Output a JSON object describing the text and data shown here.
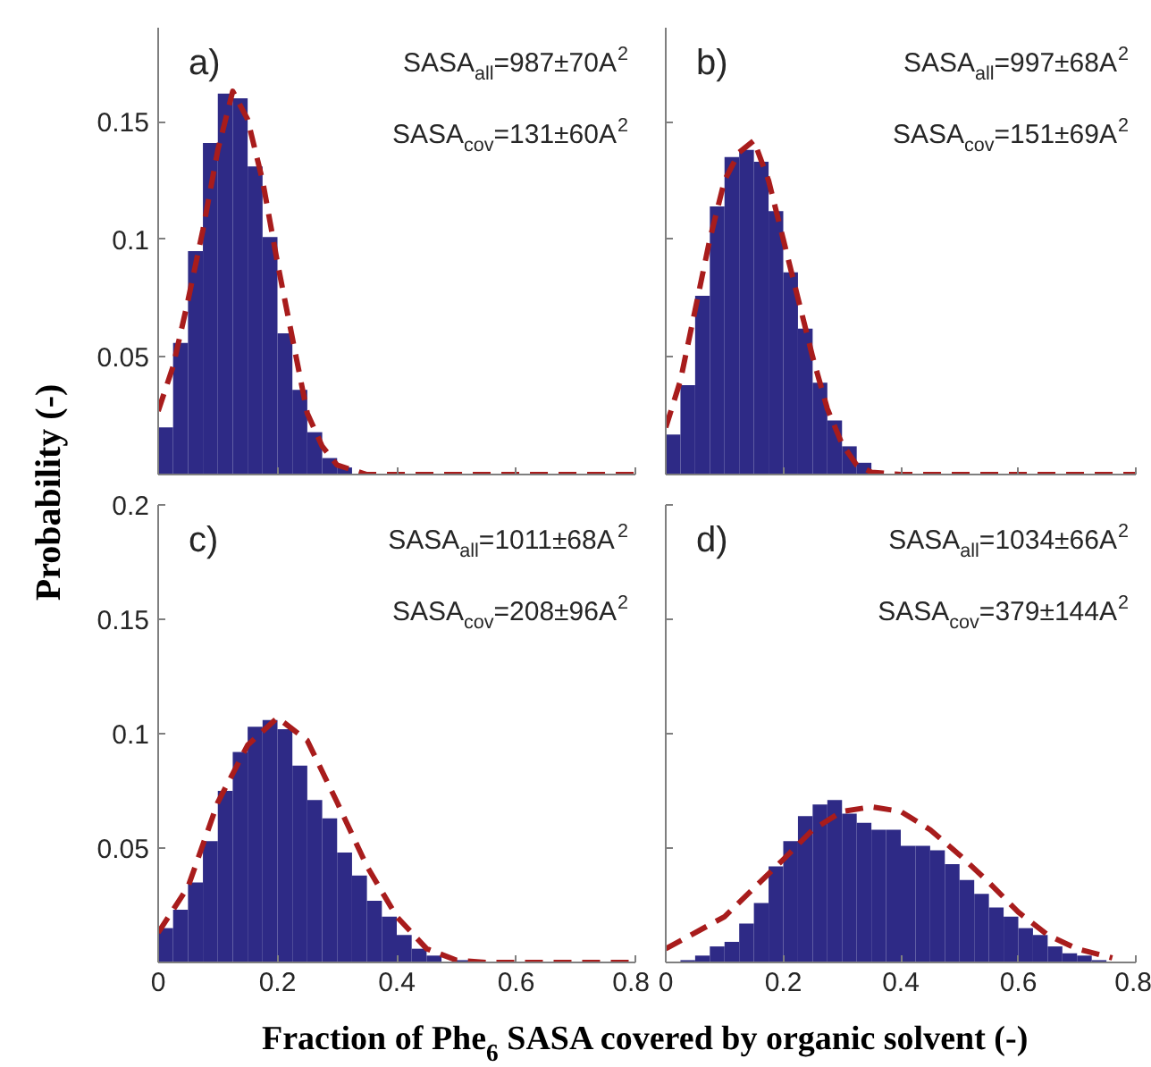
{
  "chart_data": [
    {
      "type": "histogram",
      "ylabel": "Probability (-)",
      "annotations": [
        "a)",
        "SASA$_{all}$=987±70A$^{2}$",
        "SASA$_{cov}$=131±60A$^{2}$"
      ],
      "bins": [
        0,
        0.025,
        0.05,
        0.075,
        0.1,
        0.125,
        0.15,
        0.175,
        0.2,
        0.225,
        0.25,
        0.275,
        0.3,
        0.325,
        0.35,
        0.375,
        0.4,
        0.425,
        0.45,
        0.475,
        0.5,
        0.525,
        0.55,
        0.575,
        0.6,
        0.625,
        0.65,
        0.675,
        0.7,
        0.725,
        0.75,
        0.775,
        0.8
      ],
      "values": [
        0.02,
        0.056,
        0.095,
        0.141,
        0.162,
        0.16,
        0.131,
        0.101,
        0.06,
        0.036,
        0.018,
        0.007,
        0.003,
        0,
        0,
        0,
        0,
        0,
        0,
        0,
        0,
        0,
        0,
        0,
        0,
        0,
        0,
        0,
        0,
        0,
        0,
        0
      ],
      "color": "#2e2a86",
      "xlim": [
        0,
        0.8
      ],
      "ylim": [
        0,
        0.19
      ],
      "xticks": [
        0,
        0.2,
        0.4,
        0.6,
        0.8
      ],
      "yticks": [
        0.05,
        0.1,
        0.15
      ],
      "tick_labels": "y",
      "series": [
        {
          "type": "line",
          "color": "#a81c1c",
          "line_style": "dashed",
          "x": [
            0,
            0.025,
            0.05,
            0.075,
            0.1,
            0.125,
            0.15,
            0.175,
            0.2,
            0.225,
            0.25,
            0.275,
            0.3,
            0.35,
            0.8
          ],
          "values": [
            0.027,
            0.046,
            0.074,
            0.104,
            0.138,
            0.163,
            0.151,
            0.125,
            0.09,
            0.058,
            0.026,
            0.012,
            0.004,
            0,
            0
          ]
        }
      ]
    },
    {
      "type": "histogram",
      "annotations": [
        "b)",
        "SASA$_{all}$=997±68A$^{2}$",
        "SASA$_{cov}$=151±69A$^{2}$"
      ],
      "bins": [
        0,
        0.025,
        0.05,
        0.075,
        0.1,
        0.125,
        0.15,
        0.175,
        0.2,
        0.225,
        0.25,
        0.275,
        0.3,
        0.325,
        0.35,
        0.375,
        0.4,
        0.425,
        0.45,
        0.475,
        0.5,
        0.525,
        0.55,
        0.575,
        0.6,
        0.625,
        0.65,
        0.675,
        0.7,
        0.725,
        0.75,
        0.775,
        0.8
      ],
      "values": [
        0.017,
        0.038,
        0.076,
        0.114,
        0.135,
        0.138,
        0.133,
        0.112,
        0.086,
        0.062,
        0.039,
        0.023,
        0.012,
        0.005,
        null,
        0,
        0,
        0,
        0,
        0,
        0,
        0,
        0,
        0,
        0,
        0,
        0,
        0,
        0,
        0,
        0,
        0
      ],
      "color": "#2e2a86",
      "xlim": [
        0,
        0.8
      ],
      "ylim": [
        0,
        0.19
      ],
      "xticks": [
        0,
        0.2,
        0.4,
        0.6,
        0.8
      ],
      "yticks": [
        0.05,
        0.1,
        0.15
      ],
      "tick_labels": false,
      "series": [
        {
          "type": "line",
          "color": "#a81c1c",
          "line_style": "dashed",
          "x": [
            0,
            0.025,
            0.05,
            0.075,
            0.1,
            0.125,
            0.15,
            0.175,
            0.2,
            0.225,
            0.25,
            0.275,
            0.3,
            0.325,
            0.35,
            0.4,
            0.8
          ],
          "values": [
            0.02,
            0.04,
            0.07,
            0.1,
            0.125,
            0.137,
            0.142,
            0.125,
            0.1,
            0.075,
            0.05,
            0.028,
            0.013,
            0.004,
            0.001,
            0,
            0
          ]
        }
      ]
    },
    {
      "type": "histogram",
      "xlabel": "Fraction of Phe$_{6}$ SASA covered by organic solvent (-)",
      "annotations": [
        "c)",
        "SASA$_{all}$=1011±68A$^{2}$",
        "SASA$_{cov}$=208±96A$^{2}$"
      ],
      "bins": [
        0,
        0.025,
        0.05,
        0.075,
        0.1,
        0.125,
        0.15,
        0.175,
        0.2,
        0.225,
        0.25,
        0.275,
        0.3,
        0.325,
        0.35,
        0.375,
        0.4,
        0.425,
        0.45,
        0.475,
        0.5,
        0.525,
        0.55,
        0.575,
        0.6,
        0.625,
        0.65,
        0.675,
        0.7,
        0.725,
        0.75,
        0.775,
        0.8
      ],
      "values": [
        0.015,
        0.023,
        0.035,
        0.053,
        0.075,
        0.092,
        0.103,
        0.106,
        0.102,
        0.086,
        0.071,
        0.063,
        0.048,
        0.038,
        0.027,
        0.02,
        0.012,
        0.006,
        0.003,
        null,
        0.001,
        0,
        0,
        0,
        0,
        0,
        0,
        0,
        0,
        0,
        0,
        0
      ],
      "color": "#2e2a86",
      "xlim": [
        0,
        0.8
      ],
      "ylim": [
        0,
        0.2
      ],
      "xticks": [
        0,
        0.2,
        0.4,
        0.6,
        0.8
      ],
      "yticks": [
        0.05,
        0.1,
        0.15,
        0.2
      ],
      "series": [
        {
          "type": "line",
          "color": "#a81c1c",
          "line_style": "dashed",
          "x": [
            0,
            0.05,
            0.1,
            0.15,
            0.2,
            0.25,
            0.3,
            0.35,
            0.4,
            0.45,
            0.5,
            0.55,
            0.8
          ],
          "values": [
            0.013,
            0.033,
            0.07,
            0.095,
            0.107,
            0.097,
            0.07,
            0.042,
            0.02,
            0.006,
            0.001,
            0,
            0
          ]
        }
      ]
    },
    {
      "type": "histogram",
      "annotations": [
        "d)",
        "SASA$_{all}$=1034±66A$^{2}$",
        "SASA$_{cov}$=379±144A$^{2}$"
      ],
      "bins": [
        0,
        0.025,
        0.05,
        0.075,
        0.1,
        0.125,
        0.15,
        0.175,
        0.2,
        0.225,
        0.25,
        0.275,
        0.3,
        0.325,
        0.35,
        0.375,
        0.4,
        0.425,
        0.45,
        0.475,
        0.5,
        0.525,
        0.55,
        0.575,
        0.6,
        0.625,
        0.65,
        0.675,
        0.7,
        0.725,
        0.75,
        0.775,
        0.8
      ],
      "values": [
        null,
        0.001,
        0.003,
        0.007,
        0.009,
        0.017,
        0.026,
        0.042,
        0.053,
        0.064,
        0.069,
        0.071,
        0.065,
        0.061,
        0.058,
        0.058,
        0.051,
        0.051,
        0.049,
        0.043,
        0.036,
        0.03,
        0.024,
        0.02,
        0.015,
        0.012,
        0.007,
        0.004,
        0.003,
        0.001,
        null,
        0
      ],
      "color": "#2e2a86",
      "xlim": [
        0,
        0.8
      ],
      "ylim": [
        0,
        0.2
      ],
      "xticks": [
        0,
        0.2,
        0.4,
        0.6,
        0.8
      ],
      "yticks": [
        0.05,
        0.1,
        0.15,
        0.2
      ],
      "tick_labels": "x",
      "series": [
        {
          "type": "line",
          "color": "#a81c1c",
          "line_style": "dashed",
          "x": [
            0,
            0.1,
            0.2,
            0.25,
            0.3,
            0.35,
            0.4,
            0.45,
            0.5,
            0.55,
            0.6,
            0.65,
            0.7,
            0.76
          ],
          "values": [
            0.006,
            0.02,
            0.045,
            0.058,
            0.066,
            0.068,
            0.066,
            0.058,
            0.047,
            0.035,
            0.022,
            0.012,
            0.006,
            0.002
          ]
        }
      ]
    }
  ]
}
